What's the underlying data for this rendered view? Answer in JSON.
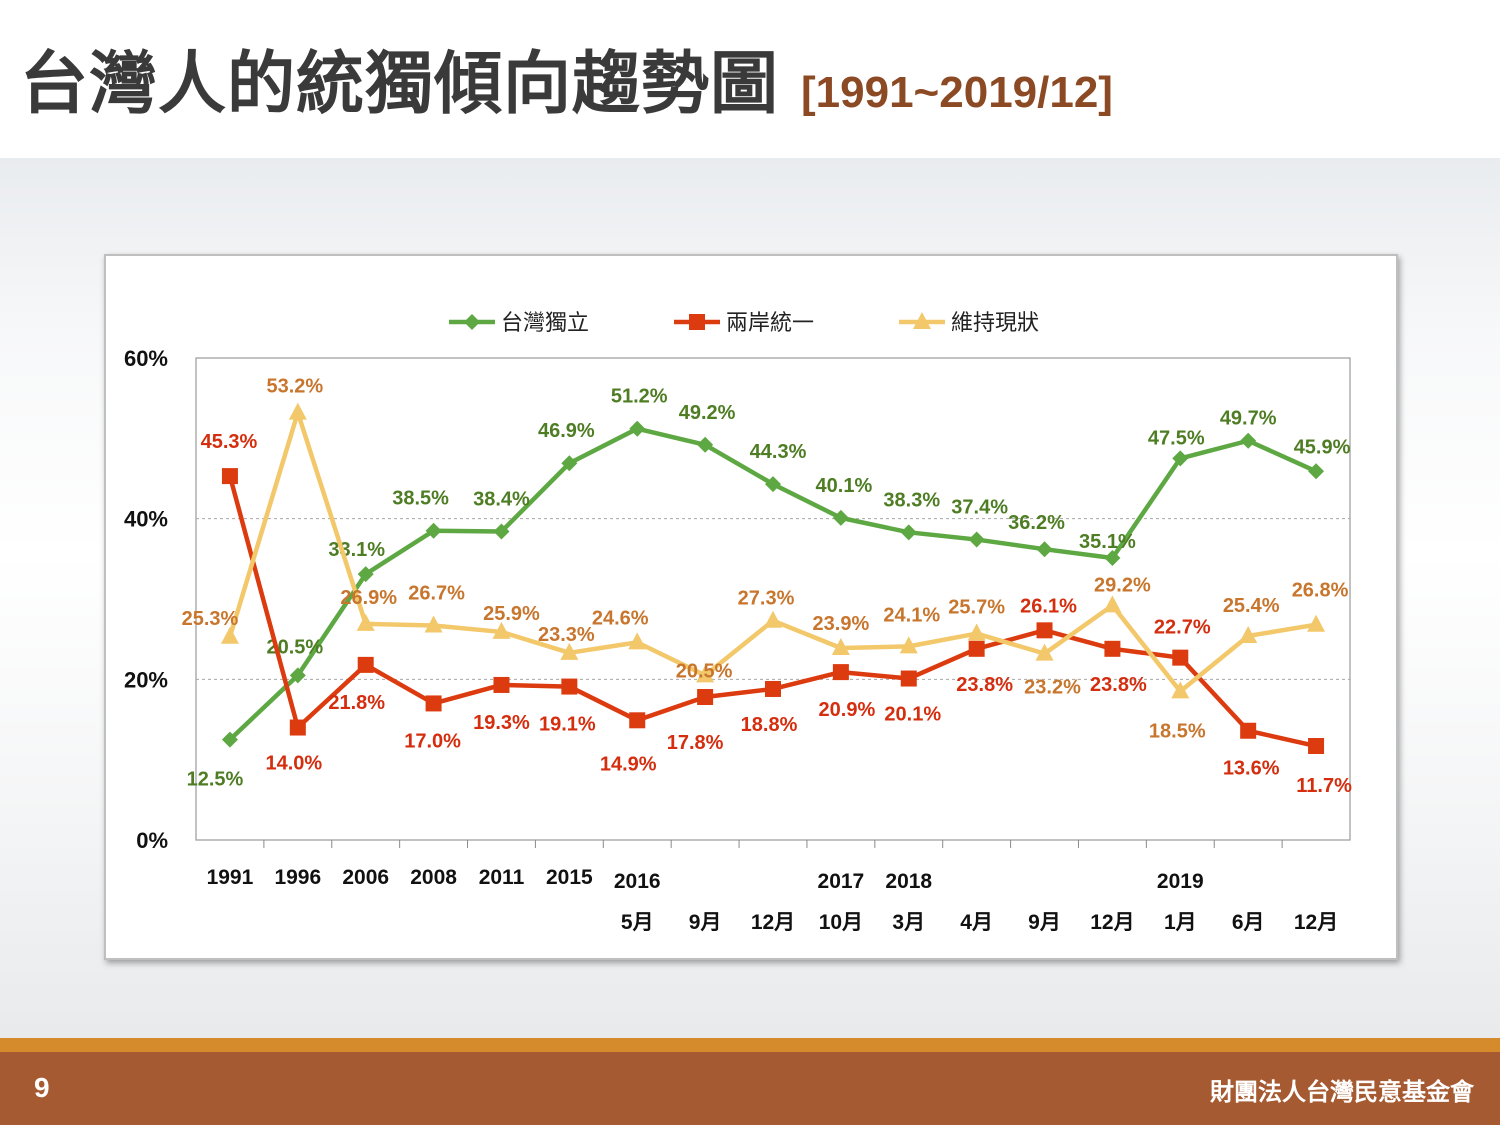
{
  "slide": {
    "title": "台灣人的統獨傾向趨勢圖",
    "range": "[1991~2019/12]",
    "page_number": "9",
    "organization": "財團法人台灣民意基金會"
  },
  "chart_data": {
    "type": "line",
    "categories": [
      "1991",
      "1996",
      "2006",
      "2008",
      "2011",
      "2015",
      "2016/5月",
      "2016/9月",
      "2016/12月",
      "2017/10月",
      "2018/3月",
      "2018/4月",
      "2018/9月",
      "2018/12月",
      "2019/1月",
      "2019/6月",
      "2019/12月"
    ],
    "x_labels_top": [
      "1991",
      "1996",
      "2006",
      "2008",
      "2011",
      "2015",
      "2016",
      "",
      "",
      "2017",
      "2018",
      "",
      "",
      "",
      "2019",
      "",
      ""
    ],
    "x_labels_bottom": [
      "",
      "",
      "",
      "",
      "",
      "",
      "5月",
      "9月",
      "12月",
      "10月",
      "3月",
      "4月",
      "9月",
      "12月",
      "1月",
      "6月",
      "12月"
    ],
    "y_ticks": [
      "0%",
      "20%",
      "40%",
      "60%"
    ],
    "ylim": [
      0,
      60
    ],
    "grid": "horizontal-dashed",
    "legend_position": "top",
    "series": [
      {
        "name": "台灣獨立",
        "color": "#5ea843",
        "label_color": "#4e7d24",
        "marker": "diamond",
        "values": [
          12.5,
          20.5,
          33.1,
          38.5,
          38.4,
          46.9,
          51.2,
          49.2,
          44.3,
          40.1,
          38.3,
          37.4,
          36.2,
          35.1,
          47.5,
          49.7,
          45.9
        ],
        "labels": [
          "12.5%",
          "20.5%",
          "33.1%",
          "38.5%",
          "38.4%",
          "46.9%",
          "51.2%",
          "49.2%",
          "44.3%",
          "40.1%",
          "38.3%",
          "37.4%",
          "36.2%",
          "35.1%",
          "47.5%",
          "49.7%",
          "45.9%"
        ]
      },
      {
        "name": "兩岸統一",
        "color": "#dc3b10",
        "label_color": "#d42e0f",
        "marker": "square",
        "values": [
          45.3,
          14.0,
          21.8,
          17.0,
          19.3,
          19.1,
          14.9,
          17.8,
          18.8,
          20.9,
          20.1,
          23.8,
          26.1,
          23.8,
          22.7,
          13.6,
          11.7
        ],
        "labels": [
          "45.3%",
          "14.0%",
          "21.8%",
          "17.0%",
          "19.3%",
          "19.1%",
          "14.9%",
          "17.8%",
          "18.8%",
          "20.9%",
          "20.1%",
          "23.8%",
          "26.1%",
          "23.8%",
          "22.7%",
          "13.6%",
          "11.7%"
        ]
      },
      {
        "name": "維持現狀",
        "color": "#f2c86a",
        "label_color": "#c8762e",
        "marker": "triangle",
        "values": [
          25.3,
          53.2,
          26.9,
          26.7,
          25.9,
          23.3,
          24.6,
          20.5,
          27.3,
          23.9,
          24.1,
          25.7,
          23.2,
          29.2,
          18.5,
          25.4,
          26.8
        ],
        "labels": [
          "25.3%",
          "53.2%",
          "26.9%",
          "26.7%",
          "25.9%",
          "23.3%",
          "24.6%",
          "20.5%",
          "27.3%",
          "23.9%",
          "24.1%",
          "25.7%",
          "23.2%",
          "29.2%",
          "18.5%",
          "25.4%",
          "26.8%"
        ]
      }
    ]
  }
}
